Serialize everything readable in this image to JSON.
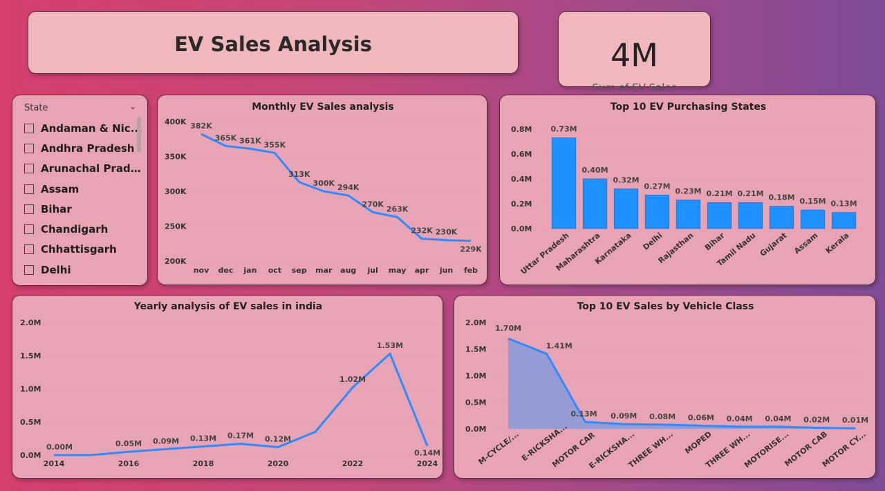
{
  "header": {
    "title": "EV Sales Analysis"
  },
  "kpi": {
    "value": "4M",
    "label": "Sum of EV Sales"
  },
  "slicer": {
    "title": "State",
    "items": [
      "Andaman & Nic...",
      "Andhra Pradesh",
      "Arunachal Pradesh",
      "Assam",
      "Bihar",
      "Chandigarh",
      "Chhattisgarh",
      "Delhi"
    ]
  },
  "colors": {
    "line": "#2b8cff",
    "bar": "#1e90ff",
    "area": "#8c9ad8"
  },
  "chart_data": [
    {
      "id": "monthly",
      "type": "line",
      "title": "Monthly EV Sales analysis",
      "categories": [
        "nov",
        "dec",
        "jan",
        "oct",
        "sep",
        "mar",
        "aug",
        "jul",
        "may",
        "apr",
        "jun",
        "feb"
      ],
      "values": [
        382000,
        365000,
        361000,
        355000,
        313000,
        300000,
        294000,
        270000,
        263000,
        232000,
        230000,
        229000
      ],
      "labels": [
        "382K",
        "365K",
        "361K",
        "355K",
        "313K",
        "300K",
        "294K",
        "270K",
        "263K",
        "232K",
        "230K",
        "229K"
      ],
      "ylim": [
        200000,
        400000
      ],
      "yticks": [
        "200K",
        "250K",
        "300K",
        "350K",
        "400K"
      ],
      "ytick_values": [
        200000,
        250000,
        300000,
        350000,
        400000
      ]
    },
    {
      "id": "states",
      "type": "bar",
      "title": "Top 10 EV Purchasing States",
      "categories": [
        "Uttar Pradesh",
        "Maharashtra",
        "Karnataka",
        "Delhi",
        "Rajasthan",
        "Bihar",
        "Tamil Nadu",
        "Gujarat",
        "Assam",
        "Kerala"
      ],
      "values": [
        0.73,
        0.4,
        0.32,
        0.27,
        0.23,
        0.21,
        0.21,
        0.18,
        0.15,
        0.13
      ],
      "labels": [
        "0.73M",
        "0.40M",
        "0.32M",
        "0.27M",
        "0.23M",
        "0.21M",
        "0.21M",
        "0.18M",
        "0.15M",
        "0.13M"
      ],
      "ylim": [
        0,
        0.8
      ],
      "yticks": [
        "0.0M",
        "0.2M",
        "0.4M",
        "0.6M",
        "0.8M"
      ],
      "ytick_values": [
        0,
        0.2,
        0.4,
        0.6,
        0.8
      ]
    },
    {
      "id": "yearly",
      "type": "line",
      "title": "Yearly analysis of EV sales in india",
      "x": [
        2014,
        2015,
        2016,
        2017,
        2018,
        2019,
        2020,
        2021,
        2022,
        2023,
        2024
      ],
      "values": [
        0.0,
        0.0,
        0.05,
        0.09,
        0.13,
        0.17,
        0.12,
        0.35,
        1.02,
        1.53,
        0.14
      ],
      "labels": [
        "0.00M",
        "",
        "0.05M",
        "0.09M",
        "0.13M",
        "0.17M",
        "0.12M",
        "",
        "1.02M",
        "1.53M",
        "0.14M"
      ],
      "xticks": [
        "2014",
        "2016",
        "2018",
        "2020",
        "2022",
        "2024"
      ],
      "xtick_values": [
        2014,
        2016,
        2018,
        2020,
        2022,
        2024
      ],
      "ylim": [
        0,
        2.0
      ],
      "yticks": [
        "0.0M",
        "0.5M",
        "1.0M",
        "1.5M",
        "2.0M"
      ],
      "ytick_values": [
        0,
        0.5,
        1.0,
        1.5,
        2.0
      ]
    },
    {
      "id": "vclass",
      "type": "area",
      "title": "Top 10 EV Sales by Vehicle Class",
      "categories": [
        "M-CYCLE/...",
        "E-RICKSHA...",
        "MOTOR CAR",
        "E-RICKSHA...",
        "THREE WH...",
        "MOPED",
        "THREE WH...",
        "MOTORISE...",
        "MOTOR CAB",
        "MOTOR CY..."
      ],
      "values": [
        1.7,
        1.41,
        0.13,
        0.09,
        0.08,
        0.06,
        0.04,
        0.04,
        0.02,
        0.01
      ],
      "labels": [
        "1.70M",
        "1.41M",
        "0.13M",
        "0.09M",
        "0.08M",
        "0.06M",
        "0.04M",
        "0.04M",
        "0.02M",
        "0.01M"
      ],
      "ylim": [
        0,
        2.0
      ],
      "yticks": [
        "0.0M",
        "0.5M",
        "1.0M",
        "1.5M",
        "2.0M"
      ],
      "ytick_values": [
        0,
        0.5,
        1.0,
        1.5,
        2.0
      ]
    }
  ]
}
